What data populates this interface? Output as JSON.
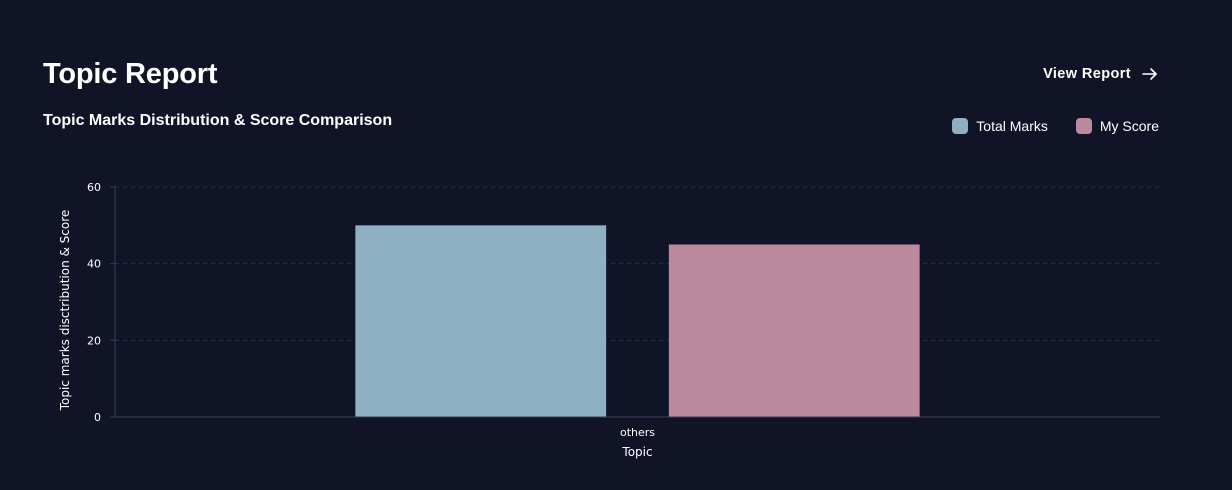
{
  "header": {
    "title": "Topic Report",
    "view_report_label": "View Report"
  },
  "icons": {
    "view_report_arrow": "arrow-right-icon"
  },
  "colors": {
    "background": "#111427",
    "total_marks": "#8fafc2",
    "my_score": "#bb8a9c",
    "grid": "#2b2f4a",
    "axis": "#3a3e5a"
  },
  "chart_data": {
    "type": "bar",
    "title": "Topic Marks Distribution & Score Comparison",
    "xlabel": "Topic",
    "ylabel": "Topic marks disctribution & Score",
    "categories": [
      "others"
    ],
    "series": [
      {
        "name": "Total Marks",
        "values": [
          50
        ]
      },
      {
        "name": "My Score",
        "values": [
          45
        ]
      }
    ],
    "ylim": [
      0,
      60
    ],
    "yticks": [
      0,
      20,
      40,
      60
    ],
    "grid": true,
    "legend_position": "top-right"
  }
}
